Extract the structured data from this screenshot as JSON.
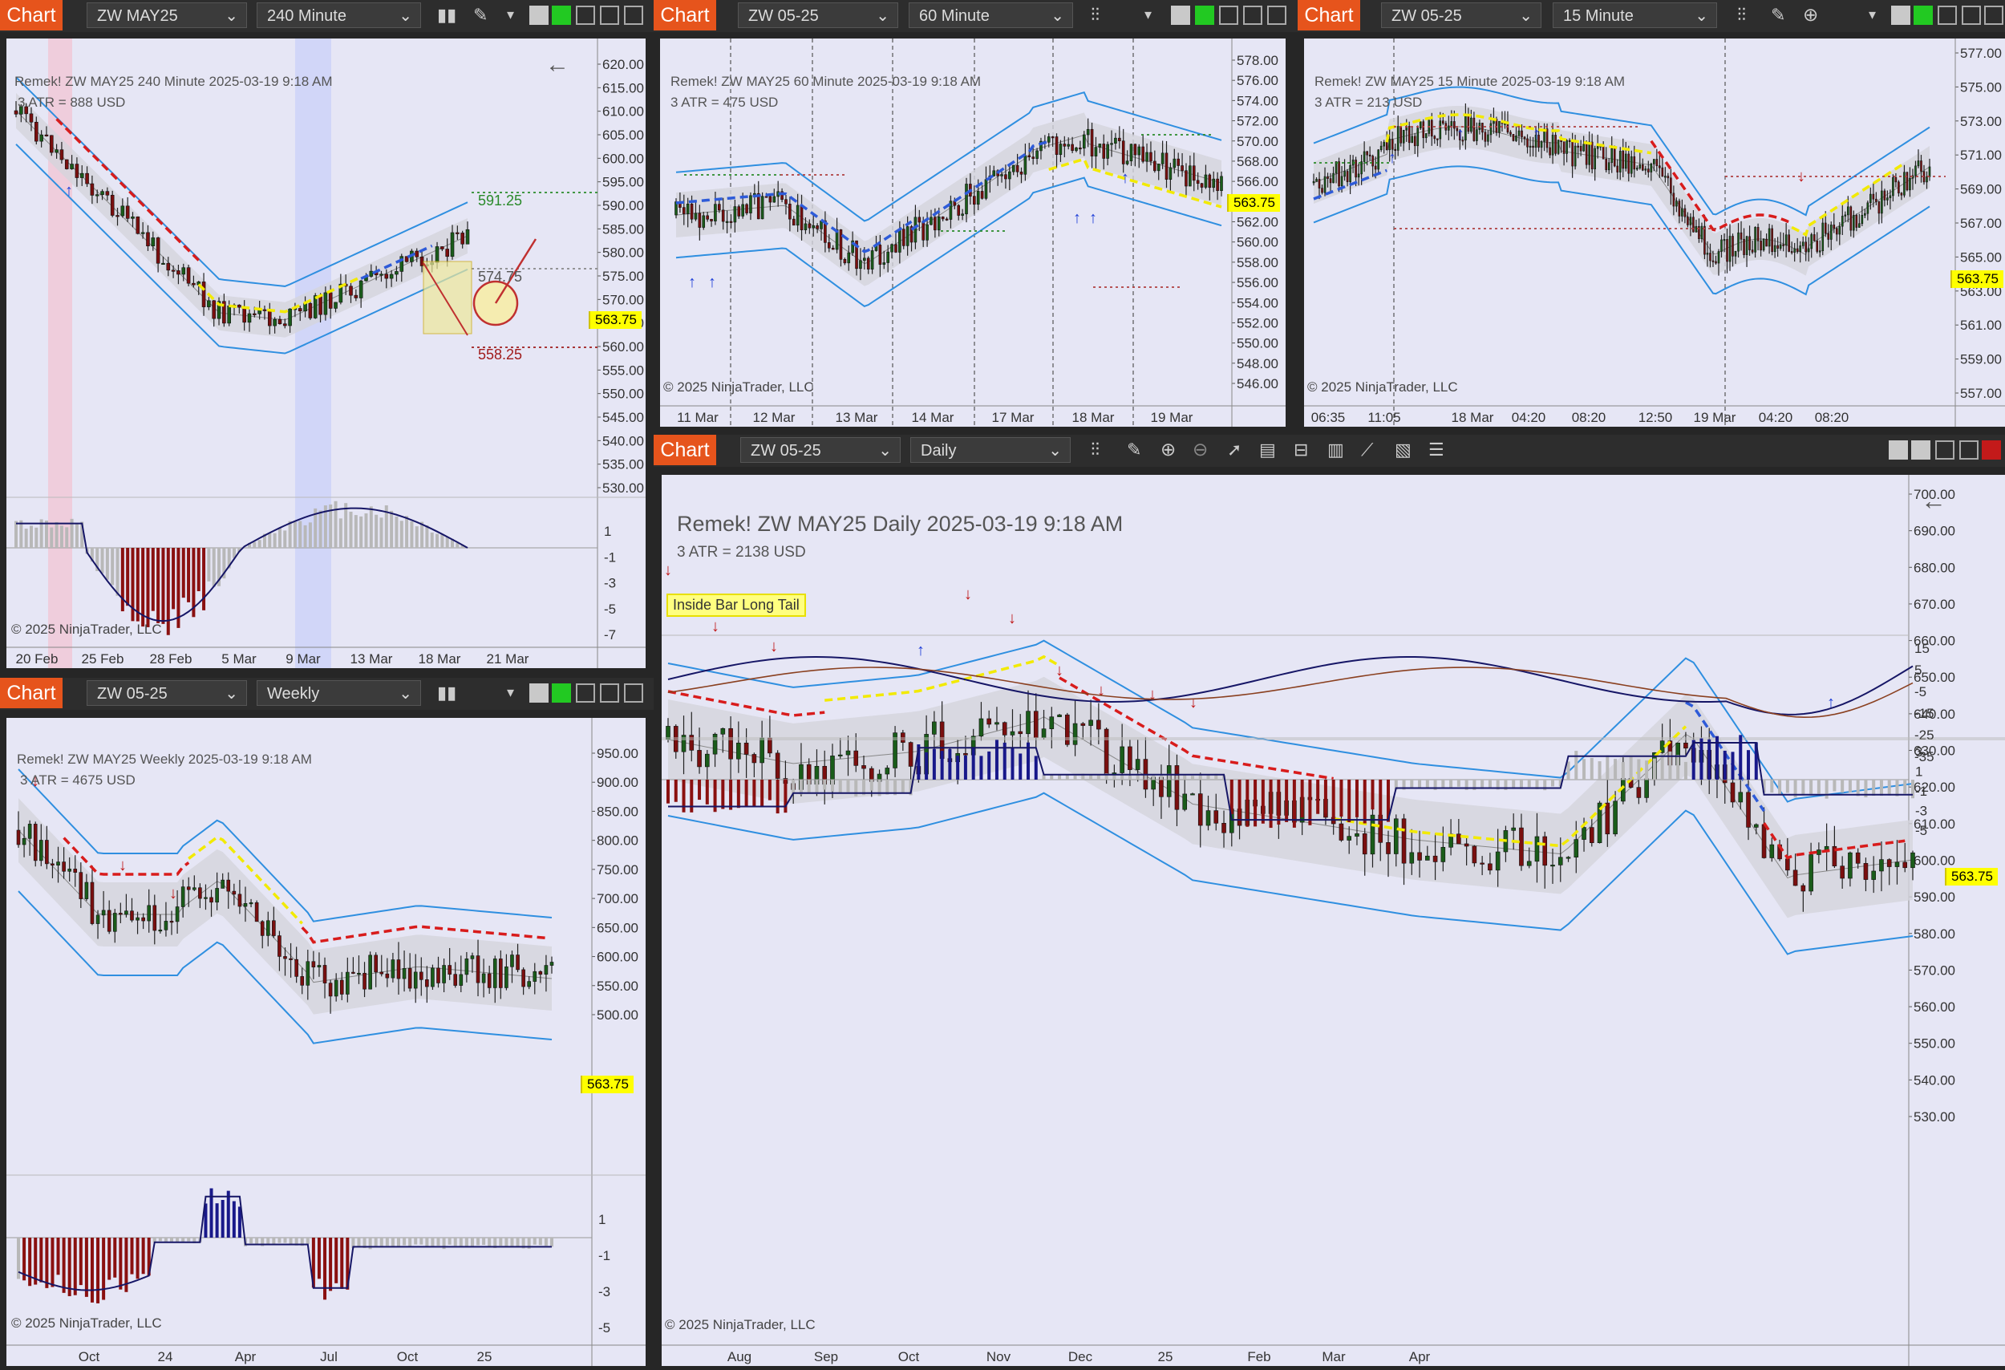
{
  "app": {
    "chart_button": "Chart",
    "copyright": "© 2025 NinjaTrader, LLC",
    "last_price": "563.75"
  },
  "charts": {
    "w240": {
      "instrument": "ZW MAY25",
      "interval": "240 Minute",
      "title": "Remek!  ZW MAY25  240 Minute  2025-03-19 9:18 AM",
      "atr": "3 ATR = 888 USD",
      "labels": {
        "upper": "591.25",
        "mid": "574.75",
        "lower": "558.25"
      },
      "y_ticks": [
        "620.00",
        "615.00",
        "610.00",
        "605.00",
        "600.00",
        "595.00",
        "590.00",
        "585.00",
        "580.00",
        "575.00",
        "570.00",
        "565.00",
        "560.00",
        "555.00",
        "550.00",
        "545.00",
        "540.00",
        "535.00",
        "530.00"
      ],
      "osc_ticks": [
        "1",
        "-1",
        "-3",
        "-5",
        "-7"
      ],
      "x_ticks": [
        "20 Feb",
        "25 Feb",
        "28 Feb",
        "5 Mar",
        "9 Mar",
        "13 Mar",
        "18 Mar",
        "21 Mar"
      ]
    },
    "w60": {
      "instrument": "ZW 05-25",
      "interval": "60 Minute",
      "title": "Remek!  ZW MAY25  60 Minute  2025-03-19 9:18 AM",
      "atr": "3 ATR = 475 USD",
      "y_ticks": [
        "578.00",
        "576.00",
        "574.00",
        "572.00",
        "570.00",
        "568.00",
        "566.00",
        "564.00",
        "562.00",
        "560.00",
        "558.00",
        "556.00",
        "554.00",
        "552.00",
        "550.00",
        "548.00",
        "546.00"
      ],
      "x_ticks": [
        "11 Mar",
        "12 Mar",
        "13 Mar",
        "14 Mar",
        "17 Mar",
        "18 Mar",
        "19 Mar"
      ]
    },
    "w15": {
      "instrument": "ZW 05-25",
      "interval": "15 Minute",
      "title": "Remek!  ZW MAY25  15 Minute  2025-03-19 9:18 AM",
      "atr": "3 ATR = 213 USD",
      "y_ticks": [
        "577.00",
        "575.00",
        "573.00",
        "571.00",
        "569.00",
        "567.00",
        "565.00",
        "563.00",
        "561.00",
        "559.00",
        "557.00"
      ],
      "x_ticks": [
        "06:35",
        "11:05",
        "18 Mar",
        "04:20",
        "08:20",
        "12:50",
        "19 Mar",
        "04:20",
        "08:20"
      ]
    },
    "weekly": {
      "instrument": "ZW 05-25",
      "interval": "Weekly",
      "title": "Remek!  ZW MAY25  Weekly  2025-03-19 9:18 AM",
      "atr": "3 ATR = 4675 USD",
      "y_ticks": [
        "950.00",
        "900.00",
        "850.00",
        "800.00",
        "750.00",
        "700.00",
        "650.00",
        "600.00",
        "550.00",
        "500.00"
      ],
      "osc_ticks": [
        "1",
        "-1",
        "-3",
        "-5"
      ],
      "x_ticks": [
        "Oct",
        "24",
        "Apr",
        "Jul",
        "Oct",
        "25"
      ]
    },
    "daily": {
      "instrument": "ZW 05-25",
      "interval": "Daily",
      "title": "Remek!  ZW MAY25  Daily  2025-03-19 9:18 AM",
      "atr": "3 ATR = 2138 USD",
      "pattern": "Inside Bar Long Tail",
      "y_ticks": [
        "700.00",
        "690.00",
        "680.00",
        "670.00",
        "660.00",
        "650.00",
        "640.00",
        "630.00",
        "620.00",
        "610.00",
        "600.00",
        "590.00",
        "580.00",
        "570.00",
        "560.00",
        "550.00",
        "540.00",
        "530.00"
      ],
      "osc1_ticks": [
        "15",
        "5",
        "-5",
        "-15",
        "-25",
        "-35"
      ],
      "osc2_ticks": [
        "3",
        "1",
        "-1",
        "-3",
        "-5"
      ],
      "x_ticks": [
        "Aug",
        "Sep",
        "Oct",
        "Nov",
        "Dec",
        "25",
        "Feb",
        "Mar",
        "Apr"
      ]
    }
  },
  "colors": {
    "panel_bg": "#e6e6f5",
    "up_candle": "#1a5c1a",
    "down_candle": "#7a0f0f",
    "band": "#2f8fe0",
    "bull_trail": "#2e5bd8",
    "bear_trail": "#d81c1c",
    "neutral": "#f2ea00",
    "chart_btn": "#e6541c"
  },
  "icons": [
    "bar-style-icon",
    "pencil-icon",
    "zoom-in-icon",
    "zoom-out-icon",
    "cursor-icon",
    "data-box-icon",
    "template-icon",
    "strategy-icon",
    "indicator-icon",
    "properties-icon",
    "list-icon"
  ]
}
